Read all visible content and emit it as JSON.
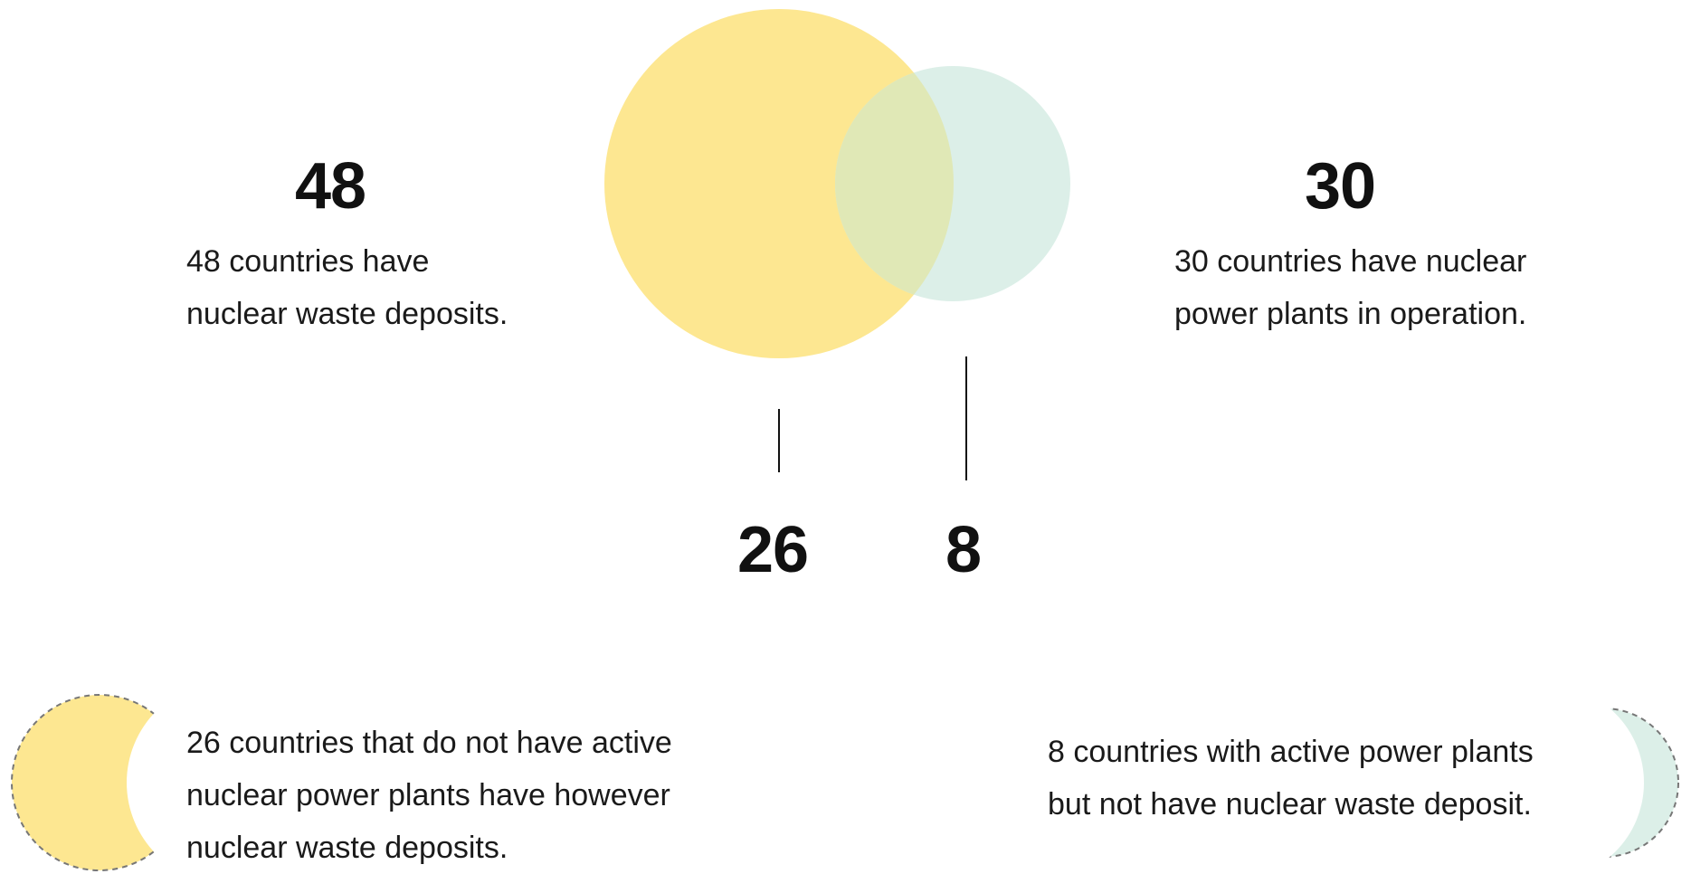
{
  "diagram": {
    "type": "venn",
    "colors": {
      "waste": "#fde791",
      "plants": "#dcefe8",
      "overlap": "#e0e8b6",
      "dash": "#777777"
    },
    "waste": {
      "count": "48",
      "line1": "48 countries have",
      "line2": "nuclear waste deposits."
    },
    "plants": {
      "count": "30",
      "line1": "30 countries have nuclear",
      "line2": "power plants in operation."
    },
    "only_waste_count": "26",
    "only_plants_count": "8",
    "only_waste_legend": {
      "line1": "26 countries that do not have active",
      "line2": "nuclear power plants have however",
      "line3": "nuclear waste deposits."
    },
    "only_plants_legend": {
      "line1": "8 countries with active power plants",
      "line2": "but not have nuclear waste deposit."
    }
  }
}
